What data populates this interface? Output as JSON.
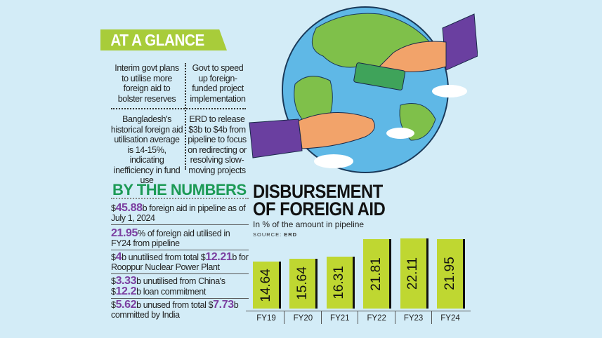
{
  "at_a_glance": {
    "heading": "AT A GLANCE",
    "items": [
      "Interim govt plans to utilise more foreign aid to bolster reserves",
      "Govt to speed up foreign-funded project implementation",
      "Bangladesh's historical foreign aid utilisation average is 14-15%, indicating inefficiency in fund use",
      "ERD to release $3b to $4b from pipeline to focus on redirecting or resolving slow-moving projects"
    ]
  },
  "by_the_numbers": {
    "heading": "BY THE NUMBERS",
    "items": [
      {
        "parts": [
          "$",
          "45.88",
          "b foreign aid in pipeline as of July 1, 2024"
        ]
      },
      {
        "parts": [
          "",
          "21.95",
          "% of foreign aid utilised in FY24 from pipeline"
        ]
      },
      {
        "parts": [
          "$",
          "4",
          "b unutilised from total $",
          "12.21",
          "b for Rooppur Nuclear Power Plant"
        ]
      },
      {
        "parts": [
          "$",
          "3.33",
          "b unutilised from China's $",
          "12.2",
          "b loan commitment"
        ]
      },
      {
        "parts": [
          "$",
          "5.62",
          "b unused from total $",
          "7.73",
          "b committed by India"
        ]
      }
    ]
  },
  "colors": {
    "background": "#d3ecf7",
    "accent_green": "#a8cc3a",
    "bar": "#bfd731",
    "highlight": "#7b3fa0",
    "heading_green": "#1c9a56"
  },
  "chart_data": {
    "type": "bar",
    "title": "DISBURSEMENT OF FOREIGN AID",
    "subtitle": "In % of the amount in pipeline",
    "source_label": "SOURCE:",
    "source": "ERD",
    "categories": [
      "FY19",
      "FY20",
      "FY21",
      "FY22",
      "FY23",
      "FY24"
    ],
    "values": [
      14.64,
      15.64,
      16.31,
      21.81,
      22.11,
      21.95
    ],
    "value_labels": [
      "14.64",
      "15.64",
      "16.31",
      "21.81",
      "22.11",
      "21.95"
    ],
    "xlabel": "",
    "ylabel": "%",
    "grid": false
  }
}
